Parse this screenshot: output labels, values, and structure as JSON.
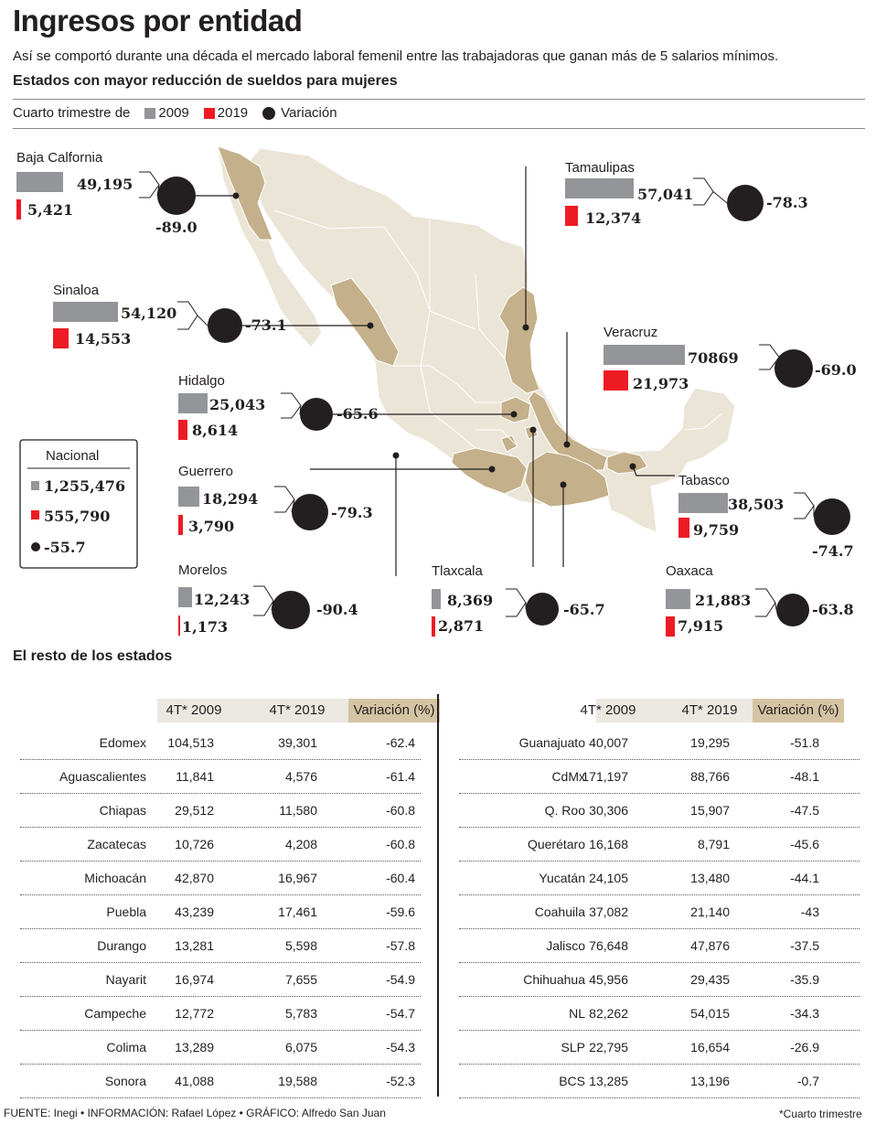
{
  "header": {
    "title": "Ingresos por entidad",
    "subtitle": "Así se comportó durante una década el mercado laboral femenil entre las trabajadoras que ganan más de 5 salarios mínimos.",
    "section_title": "Estados con mayor reducción de sueldos para mujeres"
  },
  "legend": {
    "prefix": "Cuarto trimestre de",
    "items": [
      {
        "label": "2009",
        "color": "#939598",
        "shape": "square"
      },
      {
        "label": "2019",
        "color": "#ed1c24",
        "shape": "square"
      },
      {
        "label": "Variación",
        "color": "#231f20",
        "shape": "circle"
      }
    ]
  },
  "colors": {
    "bar_2009": "#939598",
    "bar_2019": "#ed1c24",
    "circle": "#231f20",
    "map_highlight": "#c4b08a",
    "map_base": "#ebe5d8",
    "header_gray": "#ebe8e2",
    "header_tan": "#d4c4a3"
  },
  "chart_data": [
    {
      "type": "bar",
      "title": "Estados con mayor reducción de sueldos para mujeres",
      "series": [
        {
          "name": "2009"
        },
        {
          "name": "2019"
        },
        {
          "name": "Variación"
        }
      ],
      "states": [
        {
          "name": "Baja Calfornia",
          "v2009": "49,195",
          "v2019": "5,421",
          "var": "-89.0"
        },
        {
          "name": "Tamaulipas",
          "v2009": "57,041",
          "v2019": "12,374",
          "var": "-78.3"
        },
        {
          "name": "Sinaloa",
          "v2009": "54,120",
          "v2019": "14,553",
          "var": "-73.1"
        },
        {
          "name": "Veracruz",
          "v2009": "70869",
          "v2019": "21,973",
          "var": "-69.0"
        },
        {
          "name": "Hidalgo",
          "v2009": "25,043",
          "v2019": "8,614",
          "var": "-65.6"
        },
        {
          "name": "Guerrero",
          "v2009": "18,294",
          "v2019": "3,790",
          "var": "-79.3"
        },
        {
          "name": "Tabasco",
          "v2009": "38,503",
          "v2019": "9,759",
          "var": "-74.7"
        },
        {
          "name": "Morelos",
          "v2009": "12,243",
          "v2019": "1,173",
          "var": "-90.4"
        },
        {
          "name": "Tlaxcala",
          "v2009": "8,369",
          "v2019": "2,871",
          "var": "-65.7"
        },
        {
          "name": "Oaxaca",
          "v2009": "21,883",
          "v2019": "7,915",
          "var": "-63.8"
        }
      ],
      "nacional": {
        "name": "Nacional",
        "v2009": "1,255,476",
        "v2019": "555,790",
        "var": "-55.7"
      }
    },
    {
      "type": "table",
      "title": "El resto de los estados",
      "columns": [
        "",
        "4T* 2009",
        "4T* 2019",
        "Variación (%)"
      ],
      "left_rows": [
        [
          "Edomex",
          "104,513",
          "39,301",
          "-62.4"
        ],
        [
          "Aguascalientes",
          "11,841",
          "4,576",
          "-61.4"
        ],
        [
          "Chiapas",
          "29,512",
          "11,580",
          "-60.8"
        ],
        [
          "Zacatecas",
          "10,726",
          "4,208",
          "-60.8"
        ],
        [
          "Michoacán",
          "42,870",
          "16,967",
          "-60.4"
        ],
        [
          "Puebla",
          "43,239",
          "17,461",
          "-59.6"
        ],
        [
          "Durango",
          "13,281",
          "5,598",
          "-57.8"
        ],
        [
          "Nayarit",
          "16,974",
          "7,655",
          "-54.9"
        ],
        [
          "Campeche",
          "12,772",
          "5,783",
          "-54.7"
        ],
        [
          "Colima",
          "13,289",
          "6,075",
          "-54.3"
        ],
        [
          "Sonora",
          "41,088",
          "19,588",
          "-52.3"
        ]
      ],
      "right_rows": [
        [
          "Guanajuato",
          "40,007",
          "19,295",
          "-51.8"
        ],
        [
          "CdMx",
          "171,197",
          "88,766",
          "-48.1"
        ],
        [
          "Q. Roo",
          "30,306",
          "15,907",
          "-47.5"
        ],
        [
          "Querétaro",
          "16,168",
          "8,791",
          "-45.6"
        ],
        [
          "Yucatán",
          "24,105",
          "13,480",
          "-44.1"
        ],
        [
          "Coahuila",
          "37,082",
          "21,140",
          "-43"
        ],
        [
          "Jalisco",
          "76,648",
          "47,876",
          "-37.5"
        ],
        [
          "Chihuahua",
          "45,956",
          "29,435",
          "-35.9"
        ],
        [
          "NL",
          "82,262",
          "54,015",
          "-34.3"
        ],
        [
          "SLP",
          "22,795",
          "16,654",
          "-26.9"
        ],
        [
          "BCS",
          "13,285",
          "13,196",
          "-0.7"
        ]
      ]
    }
  ],
  "footer": {
    "source": "FUENTE: Inegi • INFORMACIÓN: Rafael López • GRÁFICO: Alfredo San Juan",
    "note": "*Cuarto trimestre"
  }
}
